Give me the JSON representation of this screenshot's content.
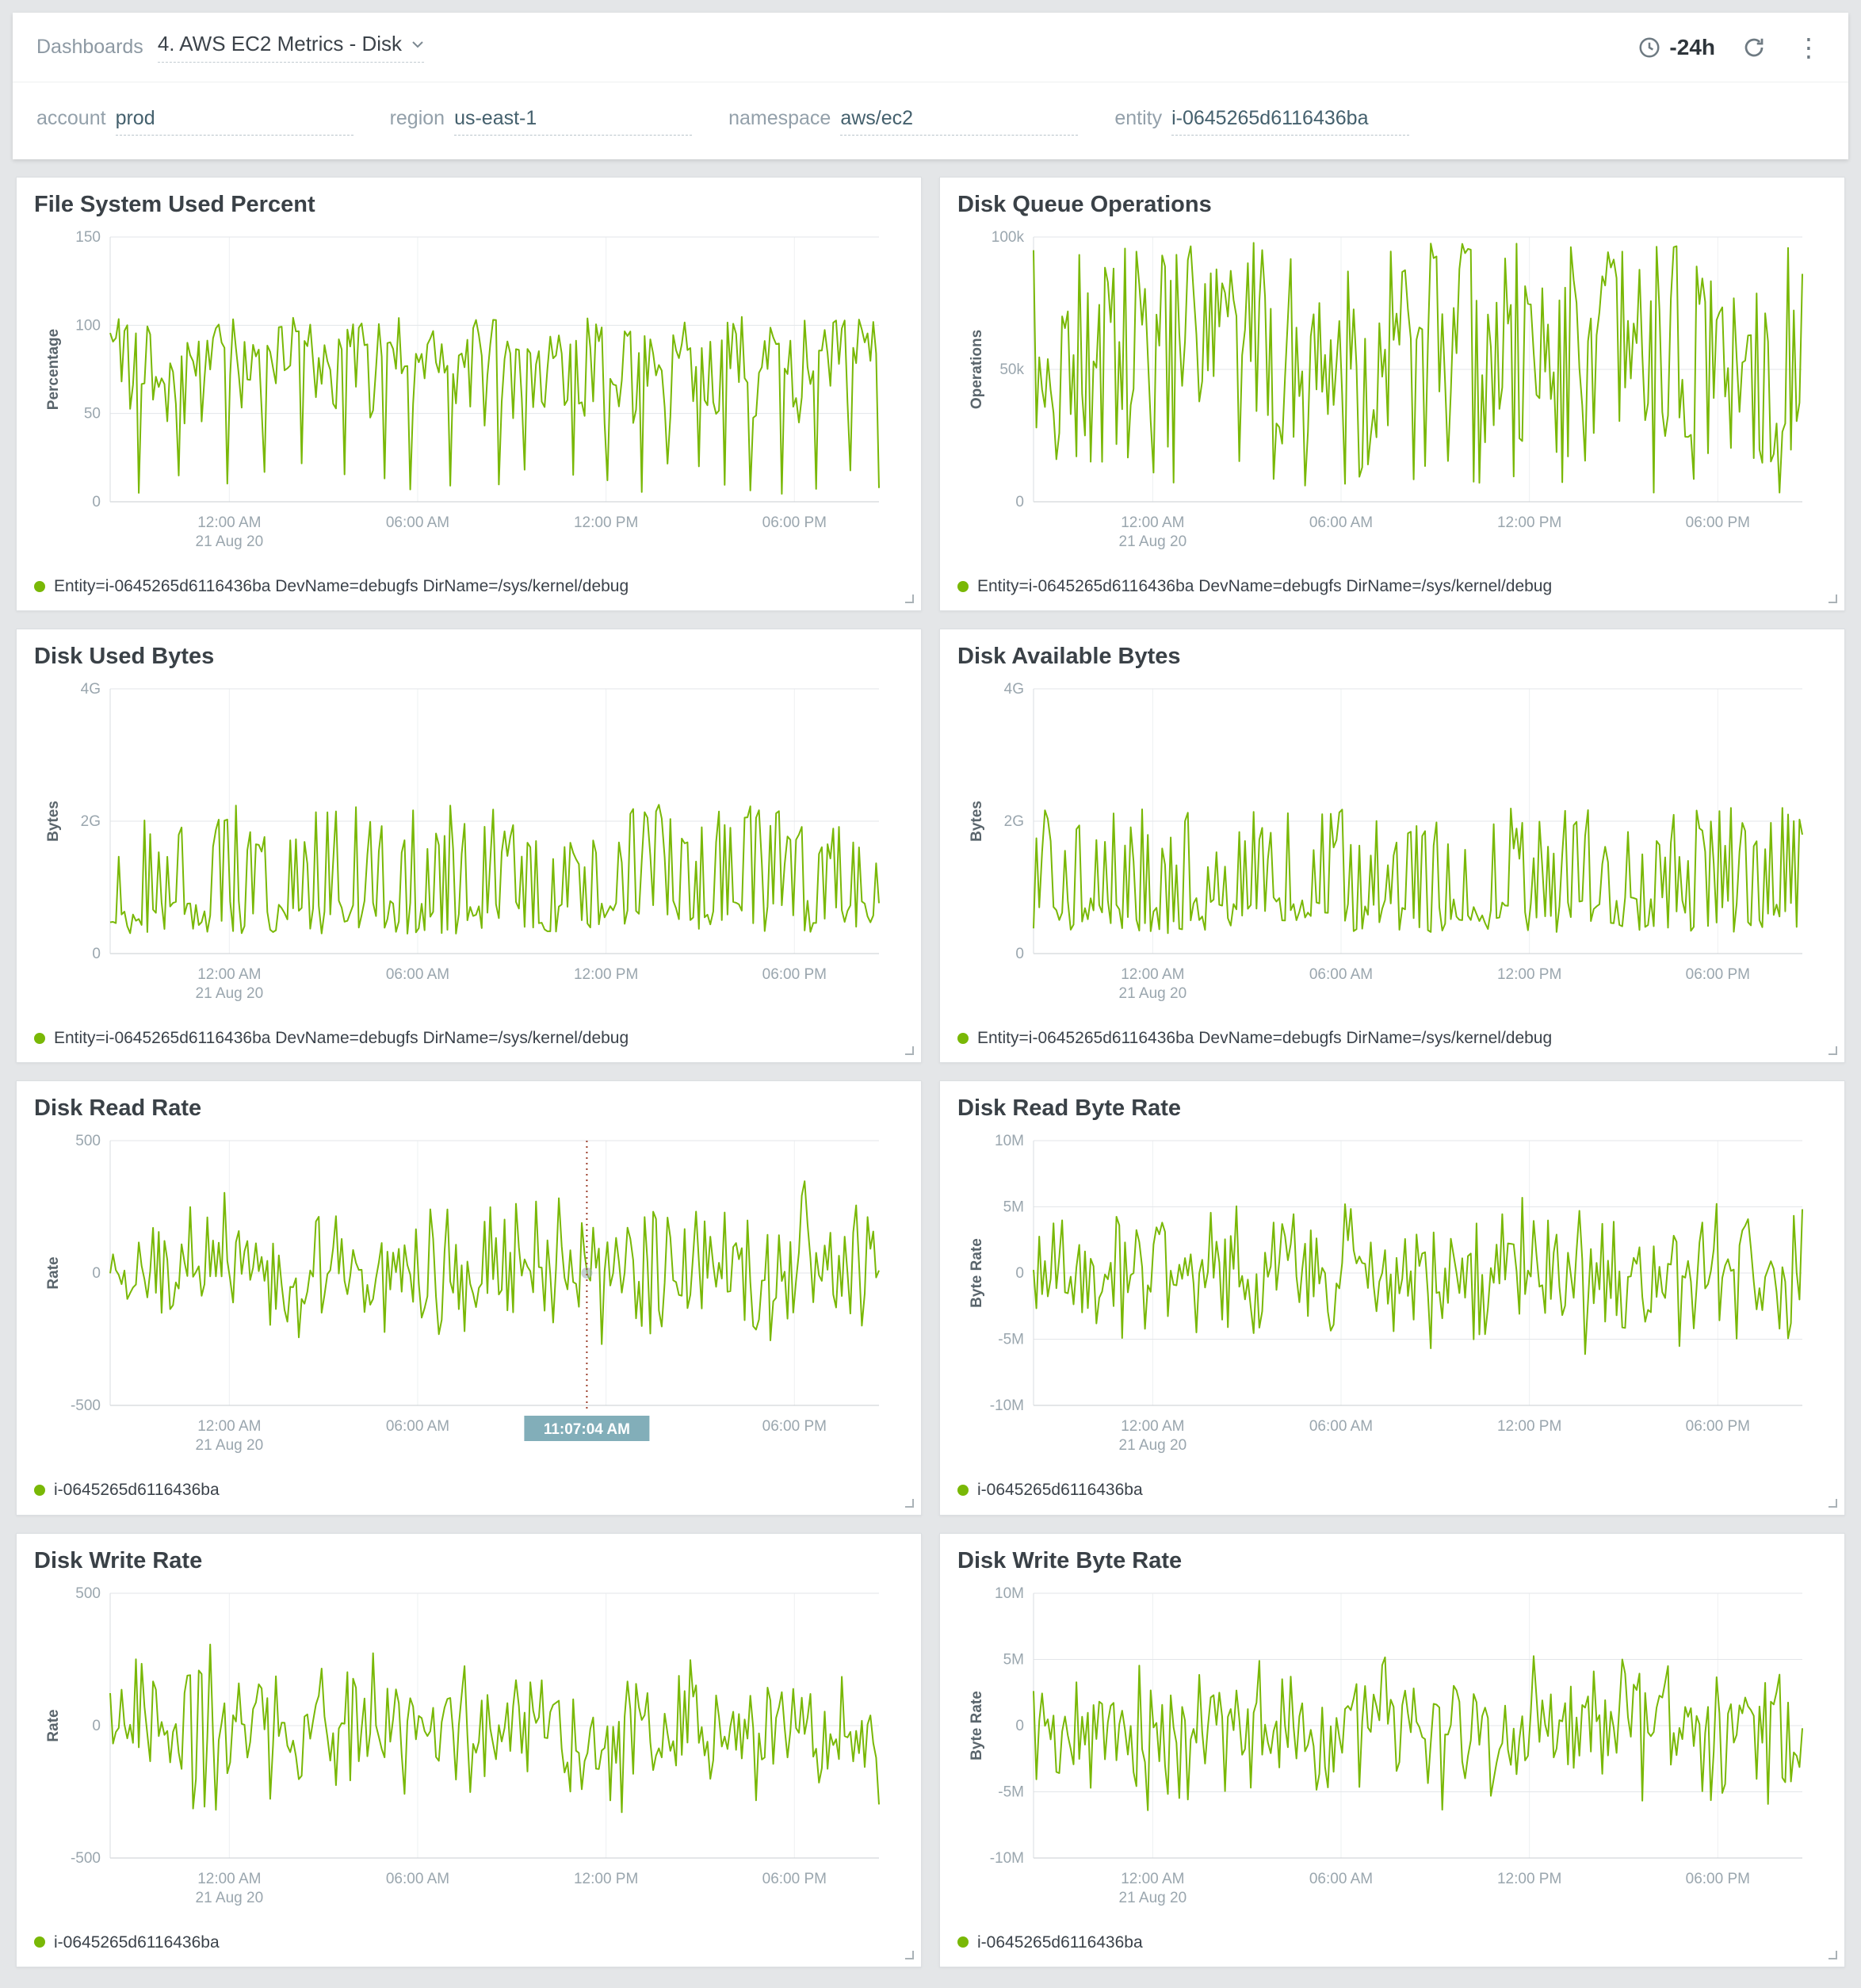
{
  "header": {
    "breadcrumb": "Dashboards",
    "dashboard_title": "4. AWS EC2 Metrics - Disk",
    "time_range": "-24h"
  },
  "filters": [
    {
      "label": "account",
      "value": "prod"
    },
    {
      "label": "region",
      "value": "us-east-1"
    },
    {
      "label": "namespace",
      "value": "aws/ec2"
    },
    {
      "label": "entity",
      "value": "i-0645265d6116436ba"
    }
  ],
  "colors": {
    "series_green": "#79b806",
    "crosshair": "#9c3f2c",
    "tooltip_bg": "#82aeb9"
  },
  "x_axis": {
    "ticks": [
      {
        "label": "12:00 AM",
        "sub": "21 Aug 20",
        "f": 0.155
      },
      {
        "label": "06:00 AM",
        "f": 0.4
      },
      {
        "label": "12:00 PM",
        "f": 0.645
      },
      {
        "label": "06:00 PM",
        "f": 0.89
      }
    ]
  },
  "chart_data": [
    {
      "type": "line",
      "title": "File System Used Percent",
      "ylabel": "Percentage",
      "ymin": 0,
      "ymax": 150,
      "yticks": [
        {
          "v": 150,
          "label": "150"
        },
        {
          "v": 100,
          "label": "100"
        },
        {
          "v": 50,
          "label": "50"
        },
        {
          "v": 0,
          "label": "0"
        }
      ],
      "legend": "Entity=i-0645265d6116436ba DevName=debugfs DirName=/sys/kernel/debug",
      "series": {
        "pattern": "high-with-dips",
        "seed": 101,
        "n": 270,
        "base": 85,
        "jitter": 40,
        "dip_low": 4,
        "dip_high": 22
      }
    },
    {
      "type": "line",
      "title": "Disk Queue Operations",
      "ylabel": "Operations",
      "ymin": 0,
      "ymax": 100000,
      "yticks": [
        {
          "v": 100000,
          "label": "100k"
        },
        {
          "v": 50000,
          "label": "50k"
        },
        {
          "v": 0,
          "label": "0"
        }
      ],
      "legend": "Entity=i-0645265d6116436ba DevName=debugfs DirName=/sys/kernel/debug",
      "series": {
        "pattern": "wide-noise",
        "seed": 202,
        "n": 270,
        "min": 1500,
        "max": 98000,
        "bias": 0.85
      }
    },
    {
      "type": "line",
      "title": "Disk Used Bytes",
      "ylabel": "Bytes",
      "ymin": 0,
      "ymax": 4,
      "yticks": [
        {
          "v": 4,
          "label": "4G"
        },
        {
          "v": 2,
          "label": "2G"
        },
        {
          "v": 0,
          "label": "0"
        }
      ],
      "legend": "Entity=i-0645265d6116436ba DevName=debugfs DirName=/sys/kernel/debug",
      "series": {
        "pattern": "two-level",
        "seed": 303,
        "n": 270,
        "p_high": 0.45,
        "hi_min": 1.3,
        "hi_max": 2.25,
        "lo_min": 0.3,
        "lo_max": 0.8
      }
    },
    {
      "type": "line",
      "title": "Disk Available Bytes",
      "ylabel": "Bytes",
      "ymin": 0,
      "ymax": 4,
      "yticks": [
        {
          "v": 4,
          "label": "4G"
        },
        {
          "v": 2,
          "label": "2G"
        },
        {
          "v": 0,
          "label": "0"
        }
      ],
      "legend": "Entity=i-0645265d6116436ba DevName=debugfs DirName=/sys/kernel/debug",
      "series": {
        "pattern": "two-level",
        "seed": 404,
        "n": 270,
        "p_high": 0.42,
        "hi_min": 1.3,
        "hi_max": 2.2,
        "lo_min": 0.3,
        "lo_max": 0.85
      }
    },
    {
      "type": "line",
      "title": "Disk Read Rate",
      "ylabel": "Rate",
      "ymin": -500,
      "ymax": 500,
      "yticks": [
        {
          "v": 500,
          "label": "500"
        },
        {
          "v": 0,
          "label": "0"
        },
        {
          "v": -500,
          "label": "-500"
        }
      ],
      "legend": "i-0645265d6116436ba",
      "series": {
        "pattern": "centered",
        "seed": 505,
        "n": 270,
        "amp": 390
      },
      "crosshair": {
        "f": 0.62,
        "tooltip": "11:07:04 AM"
      }
    },
    {
      "type": "line",
      "title": "Disk Read Byte Rate",
      "ylabel": "Byte Rate",
      "ymin": -10,
      "ymax": 10,
      "yticks": [
        {
          "v": 10,
          "label": "10M"
        },
        {
          "v": 5,
          "label": "5M"
        },
        {
          "v": 0,
          "label": "0"
        },
        {
          "v": -5,
          "label": "-5M"
        },
        {
          "v": -10,
          "label": "-10M"
        }
      ],
      "legend": "i-0645265d6116436ba",
      "series": {
        "pattern": "centered",
        "seed": 606,
        "n": 270,
        "amp": 7.0
      }
    },
    {
      "type": "line",
      "title": "Disk Write Rate",
      "ylabel": "Rate",
      "ymin": -500,
      "ymax": 500,
      "yticks": [
        {
          "v": 500,
          "label": "500"
        },
        {
          "v": 0,
          "label": "0"
        },
        {
          "v": -500,
          "label": "-500"
        }
      ],
      "legend": "i-0645265d6116436ba",
      "series": {
        "pattern": "centered",
        "seed": 707,
        "n": 270,
        "amp": 380
      }
    },
    {
      "type": "line",
      "title": "Disk Write Byte Rate",
      "ylabel": "Byte Rate",
      "ymin": -10,
      "ymax": 10,
      "yticks": [
        {
          "v": 10,
          "label": "10M"
        },
        {
          "v": 5,
          "label": "5M"
        },
        {
          "v": 0,
          "label": "0"
        },
        {
          "v": -5,
          "label": "-5M"
        },
        {
          "v": -10,
          "label": "-10M"
        }
      ],
      "legend": "i-0645265d6116436ba",
      "series": {
        "pattern": "centered",
        "seed": 808,
        "n": 270,
        "amp": 7.0
      }
    }
  ]
}
